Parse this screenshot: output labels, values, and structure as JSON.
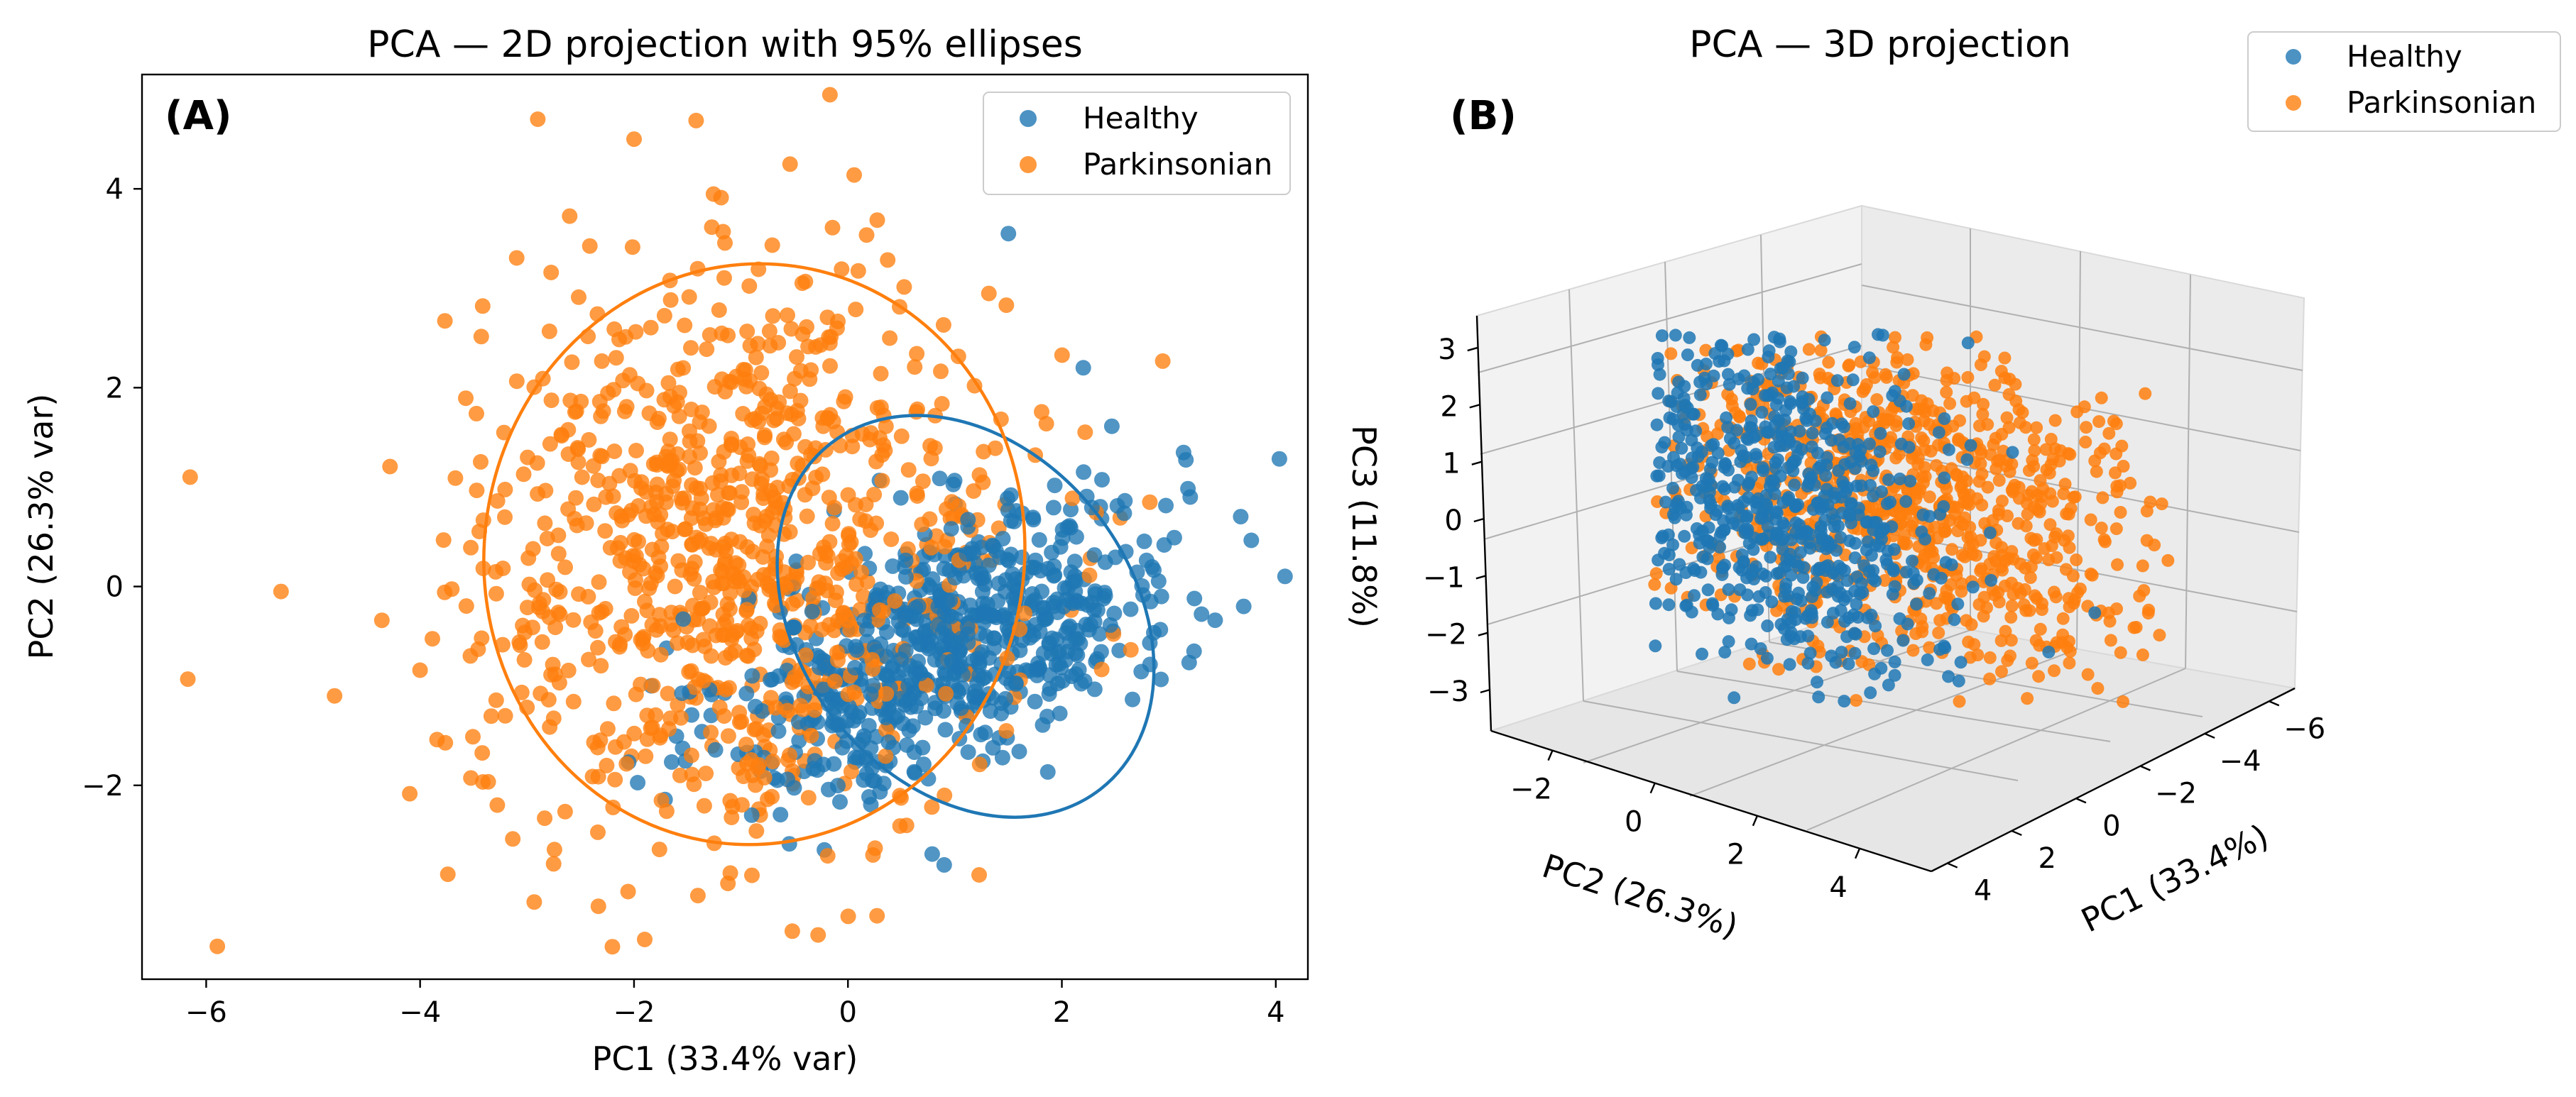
{
  "chart_data": [
    {
      "panel": "(A)",
      "type": "scatter",
      "title": "PCA — 2D projection with 95% ellipses",
      "xlabel": "PC1 (33.4% var)",
      "ylabel": "PC2 (26.3% var)",
      "xlim": [
        -6.6,
        4.3
      ],
      "ylim": [
        -3.95,
        5.15
      ],
      "xticks": [
        -6,
        -4,
        -2,
        0,
        2,
        4
      ],
      "yticks": [
        -2,
        0,
        2,
        4
      ],
      "grid": false,
      "legend": "top-right",
      "series": [
        {
          "name": "Healthy",
          "color": "#1f77b4",
          "approx_n": 700,
          "center": [
            1.0,
            -0.55
          ],
          "spread": [
            1.05,
            0.75,
            0.55
          ],
          "ellipse": {
            "center": [
              1.0,
              -0.4
            ],
            "x_extent": [
              -0.8,
              3.0
            ],
            "y_extent": [
              -2.4,
              1.8
            ]
          },
          "sample_points": [
            [
              1.5,
              3.55
            ],
            [
              3.7,
              -0.2
            ],
            [
              0.9,
              -2.8
            ],
            [
              -0.9,
              -2.3
            ],
            [
              3.2,
              0.9
            ],
            [
              2.2,
              2.2
            ]
          ]
        },
        {
          "name": "Parkinsonian",
          "color": "#ff7f0e",
          "approx_n": 950,
          "center": [
            -1.0,
            0.3
          ],
          "spread": [
            1.25,
            1.4,
            0.0
          ],
          "ellipse": {
            "center": [
              -0.85,
              0.35
            ],
            "x_extent": [
              -3.4,
              1.65
            ],
            "y_extent": [
              -2.6,
              3.25
            ]
          },
          "sample_points": [
            [
              -6.15,
              1.1
            ],
            [
              -5.3,
              -0.05
            ],
            [
              -2.9,
              4.7
            ],
            [
              -2.0,
              4.5
            ],
            [
              -1.9,
              -3.55
            ],
            [
              -4.8,
              -1.1
            ]
          ]
        }
      ]
    },
    {
      "panel": "(B)",
      "type": "scatter",
      "title": "PCA — 3D projection",
      "xlabel": "PC1 (33.4%)",
      "ylabel": "PC2 (26.3%)",
      "zlabel": "PC3 (11.8%)",
      "xticks": [
        -6,
        -4,
        -2,
        0,
        2,
        4
      ],
      "yticks": [
        -2,
        0,
        2,
        4
      ],
      "zticks": [
        -3,
        -2,
        -1,
        0,
        1,
        2,
        3
      ],
      "grid": true,
      "legend": "top-right (outside)",
      "series": [
        {
          "name": "Healthy",
          "color": "#1f77b4",
          "approx_n": 700
        },
        {
          "name": "Parkinsonian",
          "color": "#ff7f0e",
          "approx_n": 950
        }
      ]
    }
  ]
}
